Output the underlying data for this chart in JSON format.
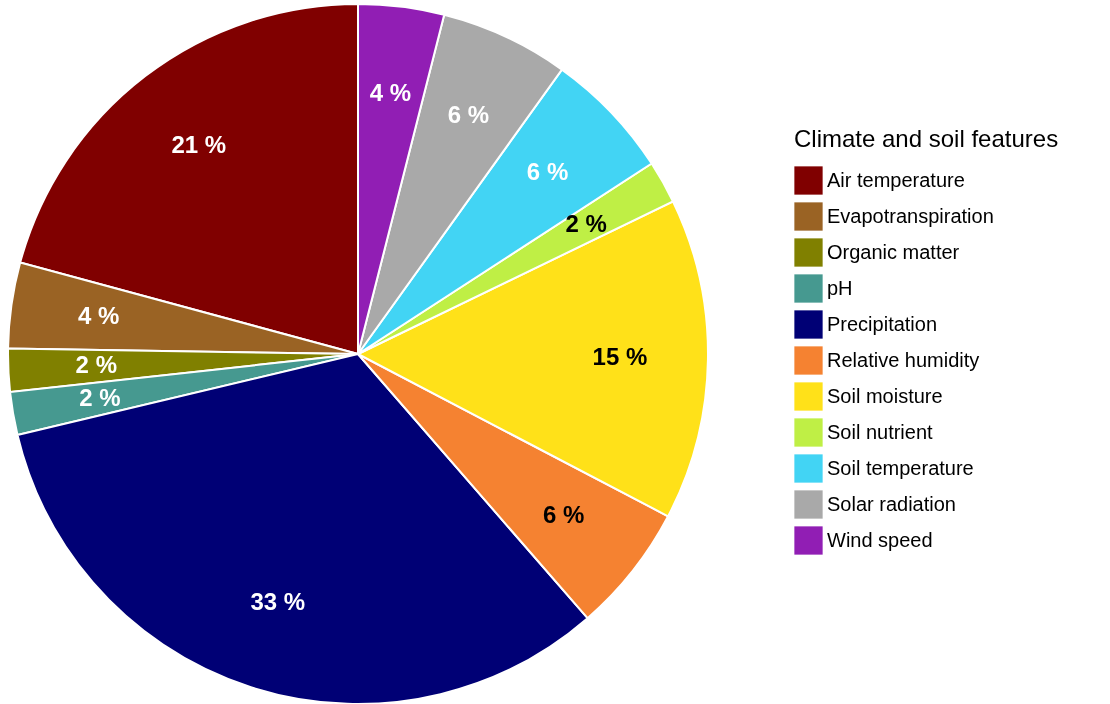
{
  "chart_data": {
    "type": "pie",
    "legend_title": "Climate and soil features",
    "legend": "right",
    "categories": [
      "Air temperature",
      "Evapotranspiration",
      "Organic matter",
      "pH",
      "Precipitation",
      "Relative humidity",
      "Soil moisture",
      "Soil nutrient",
      "Soil temperature",
      "Solar radiation",
      "Wind speed"
    ],
    "values": [
      21,
      4,
      2,
      2,
      33,
      6,
      15,
      2,
      6,
      6,
      4
    ],
    "value_labels": [
      "21 %",
      "4 %",
      "2 %",
      "2 %",
      "33 %",
      "6 %",
      "15 %",
      "2 %",
      "6 %",
      "6 %",
      "4 %"
    ],
    "colors": [
      "#800000",
      "#9a6324",
      "#808000",
      "#469990",
      "#000075",
      "#f58231",
      "#ffe119",
      "#bfef45",
      "#42d4f4",
      "#a9a9a9",
      "#911eb4"
    ]
  }
}
